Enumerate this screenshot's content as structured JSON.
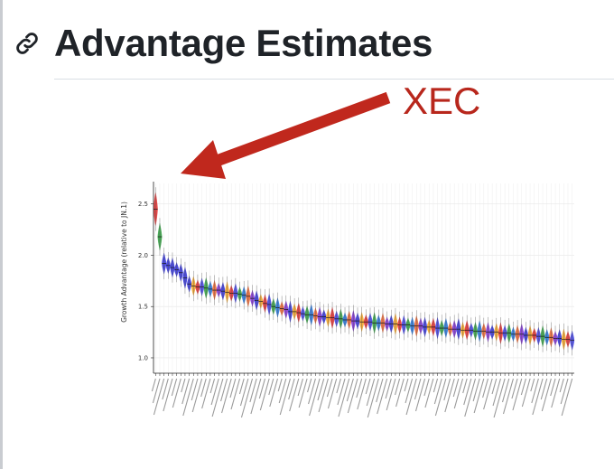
{
  "heading": {
    "title": "Advantage Estimates",
    "icon": "link-icon"
  },
  "annotation": {
    "label": "XEC",
    "color": "#c0281d"
  },
  "chart_data": {
    "type": "violin",
    "title": "",
    "xlabel": "",
    "ylabel": "Growth Advantage (relative to JN.1)",
    "ylim": [
      0.85,
      2.7
    ],
    "yticks": [
      "1.0",
      "1.5",
      "2.0",
      "2.5"
    ],
    "grid": true,
    "n_lineages": 100,
    "highlighted_category": "XEC",
    "medians": [
      2.45,
      2.18,
      1.92,
      1.9,
      1.88,
      1.86,
      1.83,
      1.78,
      1.72,
      1.7,
      1.69,
      1.69,
      1.68,
      1.67,
      1.66,
      1.66,
      1.65,
      1.64,
      1.63,
      1.63,
      1.62,
      1.61,
      1.6,
      1.58,
      1.56,
      1.55,
      1.53,
      1.52,
      1.5,
      1.49,
      1.48,
      1.47,
      1.45,
      1.45,
      1.44,
      1.43,
      1.42,
      1.42,
      1.41,
      1.4,
      1.4,
      1.39,
      1.39,
      1.38,
      1.38,
      1.37,
      1.37,
      1.36,
      1.36,
      1.35,
      1.35,
      1.35,
      1.34,
      1.34,
      1.34,
      1.33,
      1.33,
      1.33,
      1.32,
      1.32,
      1.32,
      1.31,
      1.31,
      1.31,
      1.3,
      1.3,
      1.3,
      1.29,
      1.29,
      1.29,
      1.28,
      1.28,
      1.28,
      1.27,
      1.27,
      1.27,
      1.26,
      1.26,
      1.26,
      1.25,
      1.25,
      1.25,
      1.24,
      1.24,
      1.24,
      1.23,
      1.23,
      1.23,
      1.22,
      1.22,
      1.22,
      1.21,
      1.21,
      1.2,
      1.2,
      1.19,
      1.19,
      1.18,
      1.18,
      1.17
    ],
    "palette": [
      "#2b2bd6",
      "#3a3ae0",
      "#e8602a",
      "#f0a020",
      "#2a9a3a",
      "#7a2ad0",
      "#e02828",
      "#1f6fd6"
    ]
  }
}
